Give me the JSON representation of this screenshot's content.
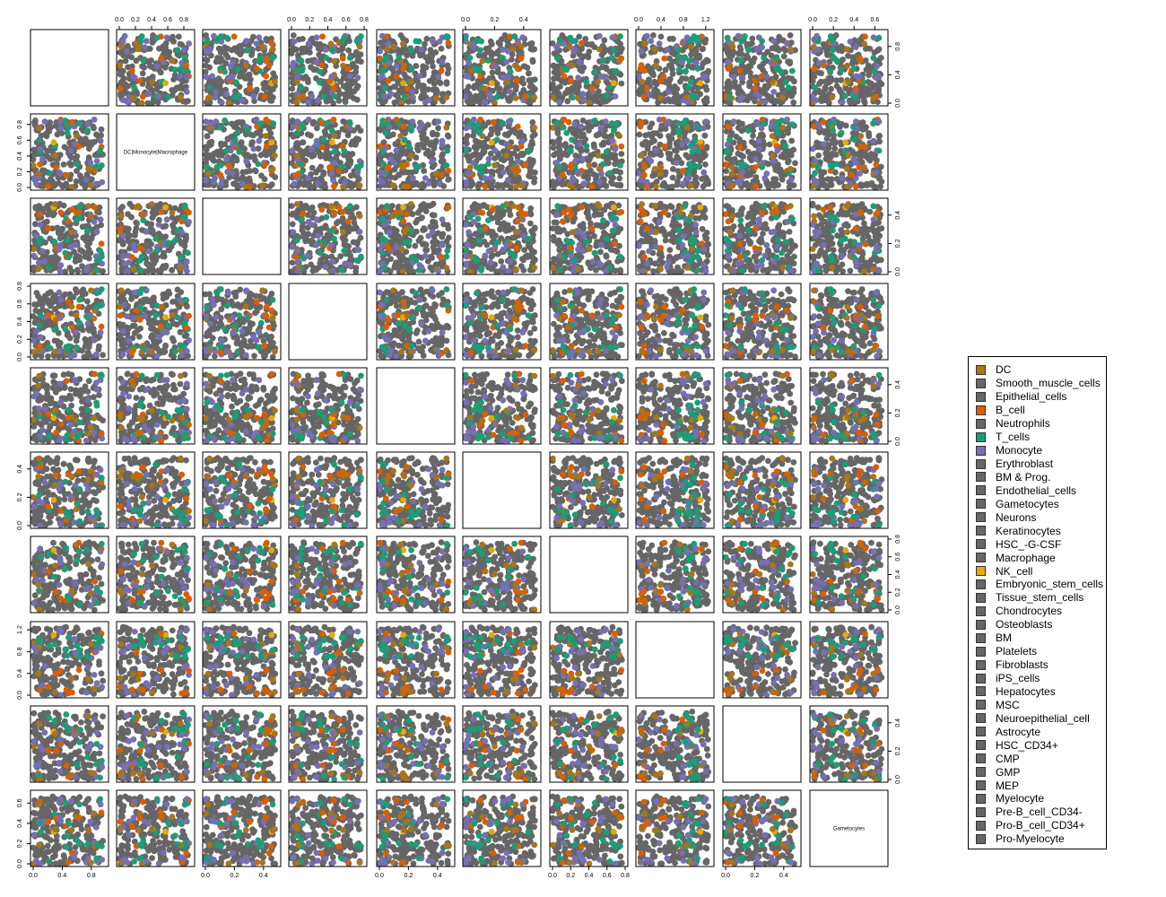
{
  "chart_data": {
    "type": "scatter",
    "subtype": "pairs-scatterplot-matrix",
    "n_vars": 10,
    "diagonal_labels": [
      "",
      "DC|Monocyte|Macrophage",
      "",
      "",
      "",
      "",
      "",
      "",
      "",
      "Gametocytes"
    ],
    "var_ranges": [
      [
        0,
        1.0
      ],
      [
        0,
        0.9
      ],
      [
        0,
        0.5
      ],
      [
        0,
        0.8
      ],
      [
        0,
        0.5
      ],
      [
        0,
        0.5
      ],
      [
        0,
        0.8
      ],
      [
        0,
        1.3
      ],
      [
        0,
        0.5
      ],
      [
        0,
        0.7
      ]
    ],
    "ticks": [
      {
        "values": [
          0.0,
          0.4,
          0.8
        ],
        "labels": [
          "0.0",
          "0.4",
          "0.8"
        ]
      },
      {
        "values": [
          0.0,
          0.2,
          0.4,
          0.6,
          0.8
        ],
        "labels": [
          "0.0",
          "0.2",
          "0.4",
          "0.6",
          "0.8"
        ]
      },
      {
        "values": [
          0.0,
          0.2,
          0.4
        ],
        "labels": [
          "0.0",
          "0.2",
          "0.4"
        ]
      },
      {
        "values": [
          0.0,
          0.2,
          0.4,
          0.6,
          0.8
        ],
        "labels": [
          "0.0",
          "0.2",
          "0.4",
          "0.6",
          "0.8"
        ]
      },
      {
        "values": [
          0.0,
          0.2,
          0.4
        ],
        "labels": [
          "0.0",
          "0.2",
          "0.4"
        ]
      },
      {
        "values": [
          0.0,
          0.2,
          0.4
        ],
        "labels": [
          "0.0",
          "0.2",
          "0.4"
        ]
      },
      {
        "values": [
          0.0,
          0.2,
          0.4,
          0.6,
          0.8
        ],
        "labels": [
          "0.0",
          "0.2",
          "0.4",
          "0.6",
          "0.8"
        ]
      },
      {
        "values": [
          0.0,
          0.4,
          0.8,
          1.2
        ],
        "labels": [
          "0.0",
          "0.4",
          "0.8",
          "1.2"
        ]
      },
      {
        "values": [
          0.0,
          0.2,
          0.4
        ],
        "labels": [
          "0.0",
          "0.2",
          "0.4"
        ]
      },
      {
        "values": [
          0.0,
          0.2,
          0.4,
          0.6
        ],
        "labels": [
          "0.0",
          "0.2",
          "0.4",
          "0.6"
        ]
      }
    ],
    "legend": {
      "placement": "right",
      "entries": [
        {
          "name": "DC",
          "color": "#a6761d"
        },
        {
          "name": "Smooth_muscle_cells",
          "color": "#666666"
        },
        {
          "name": "Epithelial_cells",
          "color": "#666666"
        },
        {
          "name": "B_cell",
          "color": "#d95f02"
        },
        {
          "name": "Neutrophils",
          "color": "#666666"
        },
        {
          "name": "T_cells",
          "color": "#1b9e77"
        },
        {
          "name": "Monocyte",
          "color": "#7570b3"
        },
        {
          "name": "Erythroblast",
          "color": "#666666"
        },
        {
          "name": "BM & Prog.",
          "color": "#666666"
        },
        {
          "name": "Endothelial_cells",
          "color": "#666666"
        },
        {
          "name": "Gametocytes",
          "color": "#666666"
        },
        {
          "name": "Neurons",
          "color": "#666666"
        },
        {
          "name": "Keratinocytes",
          "color": "#666666"
        },
        {
          "name": "HSC_-G-CSF",
          "color": "#666666"
        },
        {
          "name": "Macrophage",
          "color": "#666666"
        },
        {
          "name": "NK_cell",
          "color": "#e6ab02"
        },
        {
          "name": "Embryonic_stem_cells",
          "color": "#666666"
        },
        {
          "name": "Tissue_stem_cells",
          "color": "#666666"
        },
        {
          "name": "Chondrocytes",
          "color": "#666666"
        },
        {
          "name": "Osteoblasts",
          "color": "#666666"
        },
        {
          "name": "BM",
          "color": "#666666"
        },
        {
          "name": "Platelets",
          "color": "#666666"
        },
        {
          "name": "Fibroblasts",
          "color": "#666666"
        },
        {
          "name": "iPS_cells",
          "color": "#666666"
        },
        {
          "name": "Hepatocytes",
          "color": "#666666"
        },
        {
          "name": "MSC",
          "color": "#666666"
        },
        {
          "name": "Neuroepithelial_cell",
          "color": "#666666"
        },
        {
          "name": "Astrocyte",
          "color": "#666666"
        },
        {
          "name": "HSC_CD34+",
          "color": "#666666"
        },
        {
          "name": "CMP",
          "color": "#666666"
        },
        {
          "name": "GMP",
          "color": "#666666"
        },
        {
          "name": "MEP",
          "color": "#666666"
        },
        {
          "name": "Myelocyte",
          "color": "#666666"
        },
        {
          "name": "Pre-B_cell_CD34-",
          "color": "#666666"
        },
        {
          "name": "Pro-B_cell_CD34+",
          "color": "#666666"
        },
        {
          "name": "Pro-Myelocyte",
          "color": "#666666"
        }
      ]
    },
    "highlight_groups": [
      {
        "name": "DC",
        "color": "#a6761d"
      },
      {
        "name": "B_cell",
        "color": "#d95f02"
      },
      {
        "name": "T_cells",
        "color": "#1b9e77"
      },
      {
        "name": "Monocyte",
        "color": "#7570b3"
      },
      {
        "name": "NK_cell",
        "color": "#e6ab02"
      }
    ],
    "background_color": "#666666"
  }
}
